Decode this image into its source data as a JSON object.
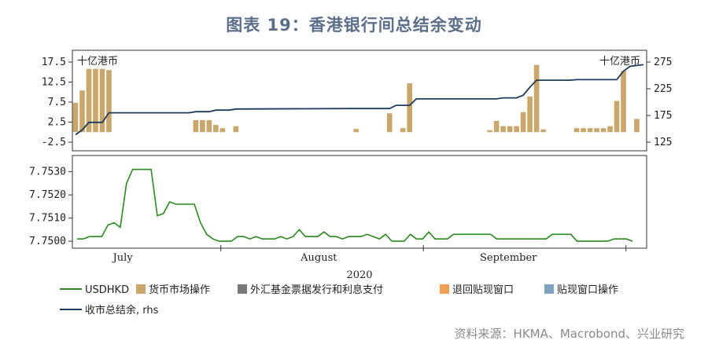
{
  "title": "图表 19：香港银行间总结余变动",
  "source": "资料来源：HKMA、Macrobond、兴业研究",
  "colors": {
    "title": "#5b6e8a",
    "usdhkd": "#2a8a1f",
    "money_market": "#c9a66b",
    "exchange_fund_bills": "#777777",
    "refund_discount_window": "#f0a050",
    "discount_window": "#7ea1c0",
    "aggregate_balance": "#1f3b5c"
  },
  "chart_data": [
    {
      "type": "bar+line",
      "title": "",
      "left_unit": "十亿港币",
      "right_unit": "十亿港币",
      "left_ylim": [
        -2.5,
        17.5
      ],
      "left_ticks": [
        "17.5",
        "12.5",
        "7.5",
        "2.5",
        "-2.5"
      ],
      "right_ylim": [
        125,
        275
      ],
      "right_ticks": [
        "275",
        "225",
        "175",
        "125"
      ],
      "day_range": [
        1,
        86
      ],
      "bars": {
        "name": "货币市场操作",
        "points": [
          {
            "day": 1,
            "value": 7.3
          },
          {
            "day": 2,
            "value": 10.4
          },
          {
            "day": 3,
            "value": 15.8
          },
          {
            "day": 4,
            "value": 15.8
          },
          {
            "day": 5,
            "value": 15.8
          },
          {
            "day": 6,
            "value": 15.5
          },
          {
            "day": 19,
            "value": 3.0
          },
          {
            "day": 20,
            "value": 3.0
          },
          {
            "day": 21,
            "value": 3.0
          },
          {
            "day": 22,
            "value": 1.8
          },
          {
            "day": 23,
            "value": 1.0
          },
          {
            "day": 25,
            "value": 1.5
          },
          {
            "day": 43,
            "value": 0.8
          },
          {
            "day": 48,
            "value": 4.7
          },
          {
            "day": 50,
            "value": 1.0
          },
          {
            "day": 51,
            "value": 12.2
          },
          {
            "day": 63,
            "value": 0.5
          },
          {
            "day": 64,
            "value": 2.8
          },
          {
            "day": 65,
            "value": 1.5
          },
          {
            "day": 66,
            "value": 1.5
          },
          {
            "day": 67,
            "value": 1.5
          },
          {
            "day": 68,
            "value": 5.0
          },
          {
            "day": 69,
            "value": 8.9
          },
          {
            "day": 70,
            "value": 16.8
          },
          {
            "day": 71,
            "value": 0.7
          },
          {
            "day": 76,
            "value": 1.0
          },
          {
            "day": 77,
            "value": 1.0
          },
          {
            "day": 78,
            "value": 1.0
          },
          {
            "day": 79,
            "value": 1.0
          },
          {
            "day": 80,
            "value": 1.0
          },
          {
            "day": 81,
            "value": 1.5
          },
          {
            "day": 82,
            "value": 7.8
          },
          {
            "day": 83,
            "value": 15.3
          },
          {
            "day": 85,
            "value": 3.3
          }
        ]
      },
      "line": {
        "name": "收市总结余, rhs",
        "points": [
          {
            "day": 1,
            "value": 139
          },
          {
            "day": 2,
            "value": 148
          },
          {
            "day": 3,
            "value": 162
          },
          {
            "day": 5,
            "value": 162
          },
          {
            "day": 6,
            "value": 180
          },
          {
            "day": 18,
            "value": 180
          },
          {
            "day": 19,
            "value": 182
          },
          {
            "day": 21,
            "value": 182
          },
          {
            "day": 22,
            "value": 185
          },
          {
            "day": 24,
            "value": 185
          },
          {
            "day": 25,
            "value": 187
          },
          {
            "day": 42,
            "value": 188
          },
          {
            "day": 48,
            "value": 188
          },
          {
            "day": 49,
            "value": 194
          },
          {
            "day": 51,
            "value": 194
          },
          {
            "day": 52,
            "value": 206
          },
          {
            "day": 64,
            "value": 206
          },
          {
            "day": 65,
            "value": 208
          },
          {
            "day": 67,
            "value": 208
          },
          {
            "day": 68,
            "value": 213
          },
          {
            "day": 69,
            "value": 228
          },
          {
            "day": 70,
            "value": 241
          },
          {
            "day": 75,
            "value": 241
          },
          {
            "day": 76,
            "value": 242
          },
          {
            "day": 82,
            "value": 242
          },
          {
            "day": 83,
            "value": 258
          },
          {
            "day": 84,
            "value": 267
          },
          {
            "day": 86,
            "value": 270
          }
        ]
      }
    },
    {
      "type": "line",
      "title": "",
      "ylim": [
        7.7497,
        7.7537
      ],
      "y_ticks": [
        "7.7530",
        "7.7520",
        "7.7510",
        "7.7500"
      ],
      "xlabel": "2020",
      "months": [
        {
          "label": "July",
          "day": 8
        },
        {
          "label": "August",
          "day": 38
        },
        {
          "label": "September",
          "day": 67
        }
      ],
      "month_boundaries": [
        23,
        54,
        85
      ],
      "day_range": [
        1,
        86
      ],
      "series": [
        {
          "name": "USDHKD",
          "points": [
            {
              "day": 1,
              "value": 7.7501
            },
            {
              "day": 2,
              "value": 7.7501
            },
            {
              "day": 3,
              "value": 7.7502
            },
            {
              "day": 4,
              "value": 7.7502
            },
            {
              "day": 5,
              "value": 7.7502
            },
            {
              "day": 6,
              "value": 7.7507
            },
            {
              "day": 7,
              "value": 7.7508
            },
            {
              "day": 8,
              "value": 7.7506
            },
            {
              "day": 9,
              "value": 7.7525
            },
            {
              "day": 10,
              "value": 7.7531
            },
            {
              "day": 11,
              "value": 7.7531
            },
            {
              "day": 12,
              "value": 7.7531
            },
            {
              "day": 13,
              "value": 7.7531
            },
            {
              "day": 14,
              "value": 7.7511
            },
            {
              "day": 15,
              "value": 7.7512
            },
            {
              "day": 16,
              "value": 7.7517
            },
            {
              "day": 17,
              "value": 7.7516
            },
            {
              "day": 18,
              "value": 7.7516
            },
            {
              "day": 19,
              "value": 7.7516
            },
            {
              "day": 20,
              "value": 7.7516
            },
            {
              "day": 21,
              "value": 7.7508
            },
            {
              "day": 22,
              "value": 7.7503
            },
            {
              "day": 23,
              "value": 7.7501
            },
            {
              "day": 24,
              "value": 7.75
            },
            {
              "day": 25,
              "value": 7.75
            },
            {
              "day": 26,
              "value": 7.75
            },
            {
              "day": 27,
              "value": 7.7502
            },
            {
              "day": 28,
              "value": 7.7502
            },
            {
              "day": 29,
              "value": 7.7501
            },
            {
              "day": 30,
              "value": 7.7502
            },
            {
              "day": 31,
              "value": 7.7501
            },
            {
              "day": 32,
              "value": 7.7501
            },
            {
              "day": 33,
              "value": 7.7501
            },
            {
              "day": 34,
              "value": 7.7502
            },
            {
              "day": 35,
              "value": 7.7501
            },
            {
              "day": 36,
              "value": 7.7502
            },
            {
              "day": 37,
              "value": 7.7505
            },
            {
              "day": 38,
              "value": 7.7502
            },
            {
              "day": 39,
              "value": 7.7502
            },
            {
              "day": 40,
              "value": 7.7502
            },
            {
              "day": 41,
              "value": 7.7504
            },
            {
              "day": 42,
              "value": 7.7502
            },
            {
              "day": 43,
              "value": 7.7502
            },
            {
              "day": 44,
              "value": 7.7501
            },
            {
              "day": 45,
              "value": 7.7502
            },
            {
              "day": 46,
              "value": 7.7502
            },
            {
              "day": 47,
              "value": 7.7502
            },
            {
              "day": 48,
              "value": 7.7503
            },
            {
              "day": 49,
              "value": 7.7502
            },
            {
              "day": 50,
              "value": 7.7501
            },
            {
              "day": 51,
              "value": 7.7503
            },
            {
              "day": 52,
              "value": 7.75
            },
            {
              "day": 53,
              "value": 7.75
            },
            {
              "day": 54,
              "value": 7.75
            },
            {
              "day": 55,
              "value": 7.7503
            },
            {
              "day": 56,
              "value": 7.7501
            },
            {
              "day": 57,
              "value": 7.7501
            },
            {
              "day": 58,
              "value": 7.7504
            },
            {
              "day": 59,
              "value": 7.7501
            },
            {
              "day": 60,
              "value": 7.7501
            },
            {
              "day": 61,
              "value": 7.7501
            },
            {
              "day": 62,
              "value": 7.7503
            },
            {
              "day": 63,
              "value": 7.7503
            },
            {
              "day": 64,
              "value": 7.7503
            },
            {
              "day": 65,
              "value": 7.7503
            },
            {
              "day": 66,
              "value": 7.7503
            },
            {
              "day": 67,
              "value": 7.7503
            },
            {
              "day": 68,
              "value": 7.7503
            },
            {
              "day": 69,
              "value": 7.7501
            },
            {
              "day": 70,
              "value": 7.7501
            },
            {
              "day": 71,
              "value": 7.7501
            },
            {
              "day": 72,
              "value": 7.7501
            },
            {
              "day": 73,
              "value": 7.7501
            },
            {
              "day": 74,
              "value": 7.7501
            },
            {
              "day": 75,
              "value": 7.7501
            },
            {
              "day": 76,
              "value": 7.7501
            },
            {
              "day": 77,
              "value": 7.7501
            },
            {
              "day": 78,
              "value": 7.7503
            },
            {
              "day": 79,
              "value": 7.7503
            },
            {
              "day": 80,
              "value": 7.7503
            },
            {
              "day": 81,
              "value": 7.7503
            },
            {
              "day": 82,
              "value": 7.75
            },
            {
              "day": 83,
              "value": 7.75
            },
            {
              "day": 84,
              "value": 7.75
            },
            {
              "day": 85,
              "value": 7.75
            },
            {
              "day": 86,
              "value": 7.75
            },
            {
              "day": 87,
              "value": 7.75
            },
            {
              "day": 88,
              "value": 7.7501
            },
            {
              "day": 89,
              "value": 7.7501
            },
            {
              "day": 90,
              "value": 7.7501
            },
            {
              "day": 91,
              "value": 7.75
            }
          ]
        }
      ]
    }
  ],
  "legend": [
    {
      "label": "USDHKD",
      "kind": "line",
      "color": "#2a8a1f"
    },
    {
      "label": "货币市场操作",
      "kind": "box",
      "color": "#c9a66b"
    },
    {
      "label": "外汇基金票据发行和利息支付",
      "kind": "box",
      "color": "#777777"
    },
    {
      "label": "退回贴现窗口",
      "kind": "box",
      "color": "#f0a050"
    },
    {
      "label": "贴现窗口操作",
      "kind": "box",
      "color": "#7ea1c0"
    },
    {
      "label": "收市总结余, rhs",
      "kind": "line",
      "color": "#1f3b5c"
    }
  ]
}
